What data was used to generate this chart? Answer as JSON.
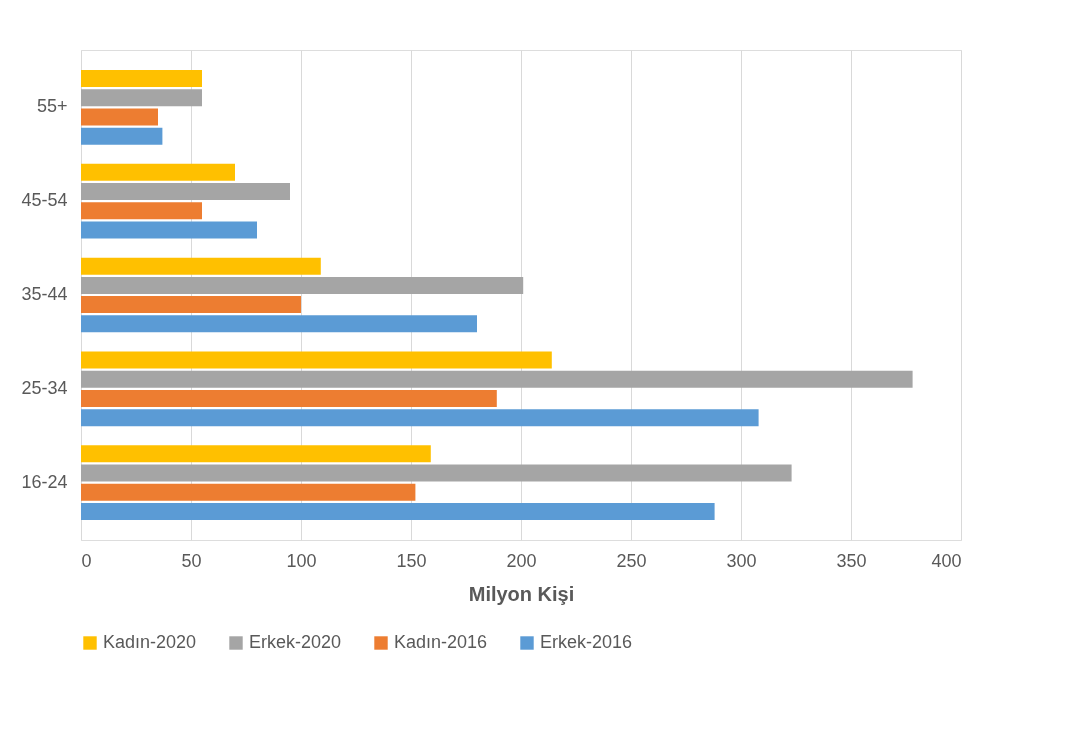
{
  "chart_data": {
    "type": "bar",
    "orientation": "horizontal",
    "xlabel": "Milyon Kişi",
    "categories": [
      "55+",
      "45-54",
      "35-44",
      "25-34",
      "16-24"
    ],
    "series": [
      {
        "name": "Kadın-2020",
        "color": "#ffc000",
        "values": [
          55,
          70,
          109,
          214,
          159
        ]
      },
      {
        "name": "Erkek-2020",
        "color": "#a5a5a5",
        "values": [
          55,
          95,
          201,
          378,
          323
        ]
      },
      {
        "name": "Kadın-2016",
        "color": "#ed7d31",
        "values": [
          35,
          55,
          100,
          189,
          152
        ]
      },
      {
        "name": "Erkek-2016",
        "color": "#5b9bd5",
        "values": [
          37,
          80,
          180,
          308,
          288
        ]
      }
    ],
    "xlim": [
      0,
      400
    ],
    "xticks": [
      0,
      50,
      100,
      150,
      200,
      250,
      300,
      350,
      400
    ],
    "grid": "x",
    "legend": "bottom"
  }
}
